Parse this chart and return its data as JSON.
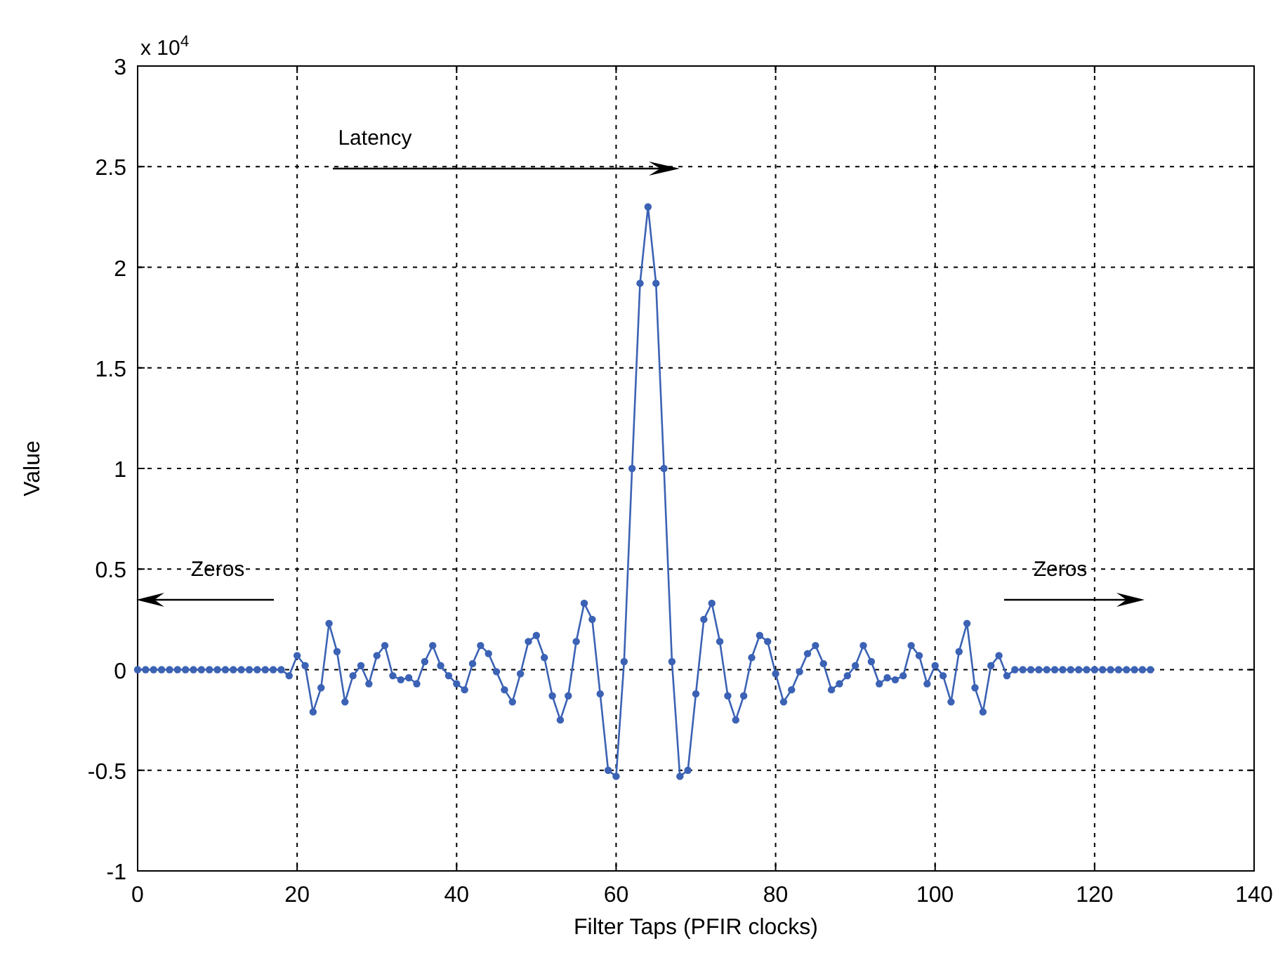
{
  "chart_data": {
    "type": "line",
    "xlabel": "Filter Taps (PFIR clocks)",
    "ylabel": "Value",
    "x": [
      0,
      1,
      2,
      3,
      4,
      5,
      6,
      7,
      8,
      9,
      10,
      11,
      12,
      13,
      14,
      15,
      16,
      17,
      18,
      19,
      20,
      21,
      22,
      23,
      24,
      25,
      26,
      27,
      28,
      29,
      30,
      31,
      32,
      33,
      34,
      35,
      36,
      37,
      38,
      39,
      40,
      41,
      42,
      43,
      44,
      45,
      46,
      47,
      48,
      49,
      50,
      51,
      52,
      53,
      54,
      55,
      56,
      57,
      58,
      59,
      60,
      61,
      62,
      63,
      64,
      65,
      66,
      67,
      68,
      69,
      70,
      71,
      72,
      73,
      74,
      75,
      76,
      77,
      78,
      79,
      80,
      81,
      82,
      83,
      84,
      85,
      86,
      87,
      88,
      89,
      90,
      91,
      92,
      93,
      94,
      95,
      96,
      97,
      98,
      99,
      100,
      101,
      102,
      103,
      104,
      105,
      106,
      107,
      108,
      109,
      110,
      111,
      112,
      113,
      114,
      115,
      116,
      117,
      118,
      119,
      120,
      121,
      122,
      123,
      124,
      125,
      126,
      127
    ],
    "series": [
      {
        "color": "#3b62b4",
        "values": [
          0,
          0,
          0,
          0,
          0,
          0,
          0,
          0,
          0,
          0,
          0,
          0,
          0,
          0,
          0,
          0,
          0,
          0,
          0,
          -0.03,
          0.07,
          0.02,
          -0.21,
          -0.09,
          0.23,
          0.09,
          -0.16,
          -0.03,
          0.02,
          -0.07,
          0.07,
          0.12,
          -0.03,
          -0.05,
          -0.04,
          -0.07,
          0.04,
          0.12,
          0.02,
          -0.03,
          -0.07,
          -0.1,
          0.03,
          0.12,
          0.08,
          -0.01,
          -0.1,
          -0.16,
          -0.02,
          0.14,
          0.17,
          0.06,
          -0.13,
          -0.25,
          -0.13,
          0.14,
          0.33,
          0.25,
          -0.12,
          -0.5,
          -0.53,
          0.04,
          1.0,
          1.92,
          2.3,
          1.92,
          1.0,
          0.04,
          -0.53,
          -0.5,
          -0.12,
          0.25,
          0.33,
          0.14,
          -0.13,
          -0.25,
          -0.13,
          0.06,
          0.17,
          0.14,
          -0.02,
          -0.16,
          -0.1,
          -0.01,
          0.08,
          0.12,
          0.03,
          -0.1,
          -0.07,
          -0.03,
          0.02,
          0.12,
          0.04,
          -0.07,
          -0.04,
          -0.05,
          -0.03,
          0.12,
          0.07,
          -0.07,
          0.02,
          -0.03,
          -0.16,
          0.09,
          0.23,
          -0.09,
          -0.21,
          0.02,
          0.07,
          -0.03,
          0,
          0,
          0,
          0,
          0,
          0,
          0,
          0,
          0,
          0,
          0,
          0,
          0,
          0,
          0,
          0,
          0,
          0
        ]
      }
    ],
    "xlim": [
      0,
      140
    ],
    "xticks": [
      0,
      20,
      40,
      60,
      80,
      100,
      120,
      140
    ],
    "ylim": [
      -1,
      3
    ],
    "yticks": [
      -1,
      -0.5,
      0,
      0.5,
      1,
      1.5,
      2,
      2.5,
      3
    ],
    "grid": true,
    "marker": "circle",
    "line_style": "solid",
    "annotations": [
      "x 10$^{4}$",
      "Latency",
      "Zeros",
      "Zeros"
    ]
  }
}
